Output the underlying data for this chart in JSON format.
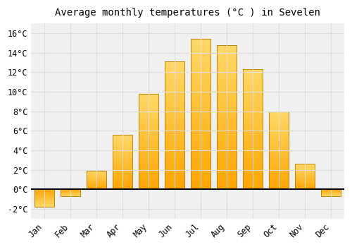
{
  "title": "Average monthly temperatures (°C ) in Sevelen",
  "months": [
    "Jan",
    "Feb",
    "Mar",
    "Apr",
    "May",
    "Jun",
    "Jul",
    "Aug",
    "Sep",
    "Oct",
    "Nov",
    "Dec"
  ],
  "values": [
    -1.8,
    -0.7,
    1.9,
    5.6,
    9.8,
    13.1,
    15.4,
    14.8,
    12.3,
    8.0,
    2.6,
    -0.7
  ],
  "bar_color_top": "#FFD966",
  "bar_color_bottom": "#FFA500",
  "bar_edge_color": "#B8860B",
  "background_color": "#FFFFFF",
  "plot_bg_color": "#F0F0F0",
  "grid_color": "#DDDDDD",
  "ylim": [
    -3,
    17
  ],
  "yticks": [
    -2,
    0,
    2,
    4,
    6,
    8,
    10,
    12,
    14,
    16
  ],
  "title_fontsize": 10,
  "tick_fontsize": 8.5,
  "zero_line_color": "#000000",
  "bar_width": 0.75
}
